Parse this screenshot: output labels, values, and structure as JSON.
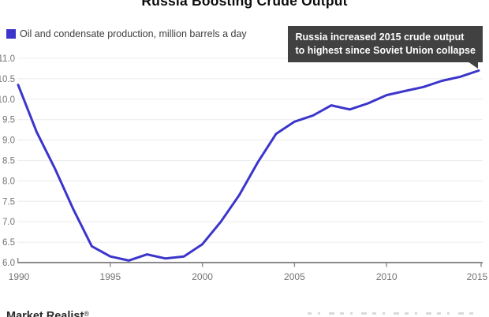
{
  "title": "Russia Boosting Crude Output",
  "legend": {
    "label": "Oil and condensate production, million barrels a day",
    "swatch_color": "#3b35cb"
  },
  "annotation": {
    "line1": "Russia increased 2015 crude output",
    "line2": "to highest since Soviet Union collapse",
    "bg_color": "#414141",
    "text_color": "#ffffff"
  },
  "footer": {
    "brand": "Market Realist",
    "registered_mark": "®"
  },
  "colors": {
    "line": "#3b35cb",
    "axis": "#8a8a8a",
    "axis_labels": "#747474",
    "gridlines": "#ececec",
    "title": "#0d0d0d"
  },
  "chart_data": {
    "type": "line",
    "title": "Russia Boosting Crude Output",
    "series_label": "Oil and condensate production, million barrels a day",
    "x": [
      1990,
      1991,
      1992,
      1993,
      1994,
      1995,
      1996,
      1997,
      1998,
      1999,
      2000,
      2001,
      2002,
      2003,
      2004,
      2005,
      2006,
      2007,
      2008,
      2009,
      2010,
      2011,
      2012,
      2013,
      2014,
      2015
    ],
    "values": [
      10.35,
      9.2,
      8.3,
      7.3,
      6.4,
      6.15,
      6.05,
      6.2,
      6.1,
      6.15,
      6.45,
      7.0,
      7.65,
      8.45,
      9.15,
      9.45,
      9.6,
      9.85,
      9.75,
      9.9,
      10.1,
      10.2,
      10.3,
      10.45,
      10.55,
      10.7
    ],
    "xlabel": "",
    "ylabel": "million barrels a day",
    "ylim": [
      6.0,
      11.0
    ],
    "ytick_step": 0.5,
    "xticks": [
      1990,
      1995,
      2000,
      2005,
      2010,
      2015
    ],
    "grid": true,
    "legend_position": "top-left",
    "line_color": "#3b35cb"
  }
}
